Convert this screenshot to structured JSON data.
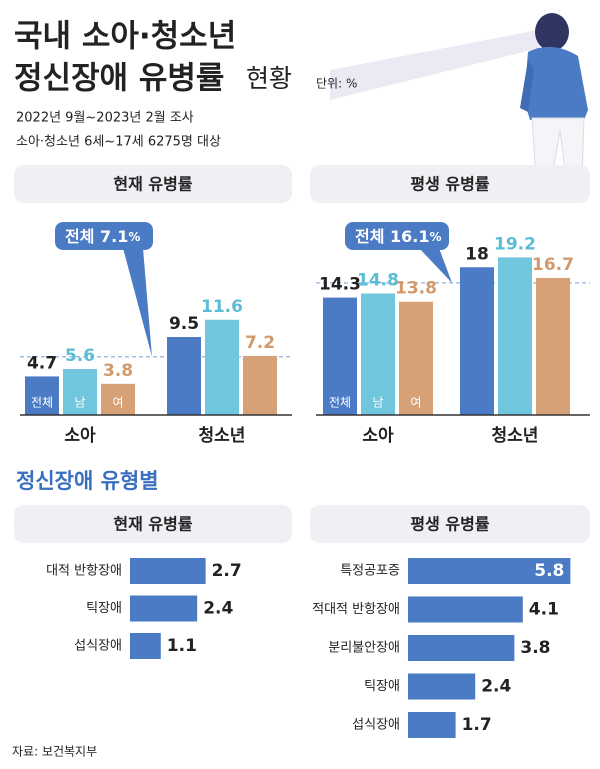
{
  "title": [
    "국내 소아·청소년",
    "정신장애 유병률"
  ],
  "title_suffix": "현황",
  "unit_note": "단위: %",
  "subtitle": [
    "2022년 9월~2023년 2월 조사",
    "소아·청소년 6세~17세 6275명 대상"
  ],
  "section_title": "정신장애 유형별",
  "source": "자료: 보건복지부",
  "chart_data": [
    {
      "type": "bar",
      "title": "현재 유병률",
      "categories": [
        "소아",
        "청소년"
      ],
      "series": [
        {
          "name": "전체",
          "color": "#4a7bc4",
          "label_color": "#222222",
          "values": [
            4.7,
            9.5
          ]
        },
        {
          "name": "남",
          "color": "#70c6dc",
          "label_color": "#5bbcd6",
          "values": [
            5.6,
            11.6
          ]
        },
        {
          "name": "여",
          "color": "#d7a177",
          "label_color": "#d29a6c",
          "values": [
            3.8,
            7.2
          ]
        }
      ],
      "reference": {
        "name": "전체",
        "value": 7.1,
        "unit": "%"
      },
      "ylim": [
        0,
        24
      ]
    },
    {
      "type": "bar",
      "title": "평생 유병률",
      "categories": [
        "소아",
        "청소년"
      ],
      "series": [
        {
          "name": "전체",
          "color": "#4a7bc4",
          "label_color": "#222222",
          "values": [
            14.3,
            18
          ]
        },
        {
          "name": "남",
          "color": "#70c6dc",
          "label_color": "#5bbcd6",
          "values": [
            14.8,
            19.2
          ]
        },
        {
          "name": "여",
          "color": "#d7a177",
          "label_color": "#d29a6c",
          "values": [
            13.8,
            16.7
          ]
        }
      ],
      "reference": {
        "name": "전체",
        "value": 16.1,
        "unit": "%"
      },
      "ylim": [
        0,
        24
      ]
    },
    {
      "type": "barh",
      "title": "현재 유병률",
      "categories": [
        "대적 반항장애",
        "틱장애",
        "섭식장애"
      ],
      "values": [
        2.7,
        2.4,
        1.1
      ],
      "color": "#4a7bc4",
      "xlim": [
        0,
        6.5
      ]
    },
    {
      "type": "barh",
      "title": "평생 유병률",
      "categories": [
        "특정공포증",
        "적대적 반항장애",
        "분리불안장애",
        "틱장애",
        "섭식장애"
      ],
      "values": [
        5.8,
        4.1,
        3.8,
        2.4,
        1.7
      ],
      "color": "#4a7bc4",
      "xlim": [
        0,
        6.5
      ]
    }
  ]
}
